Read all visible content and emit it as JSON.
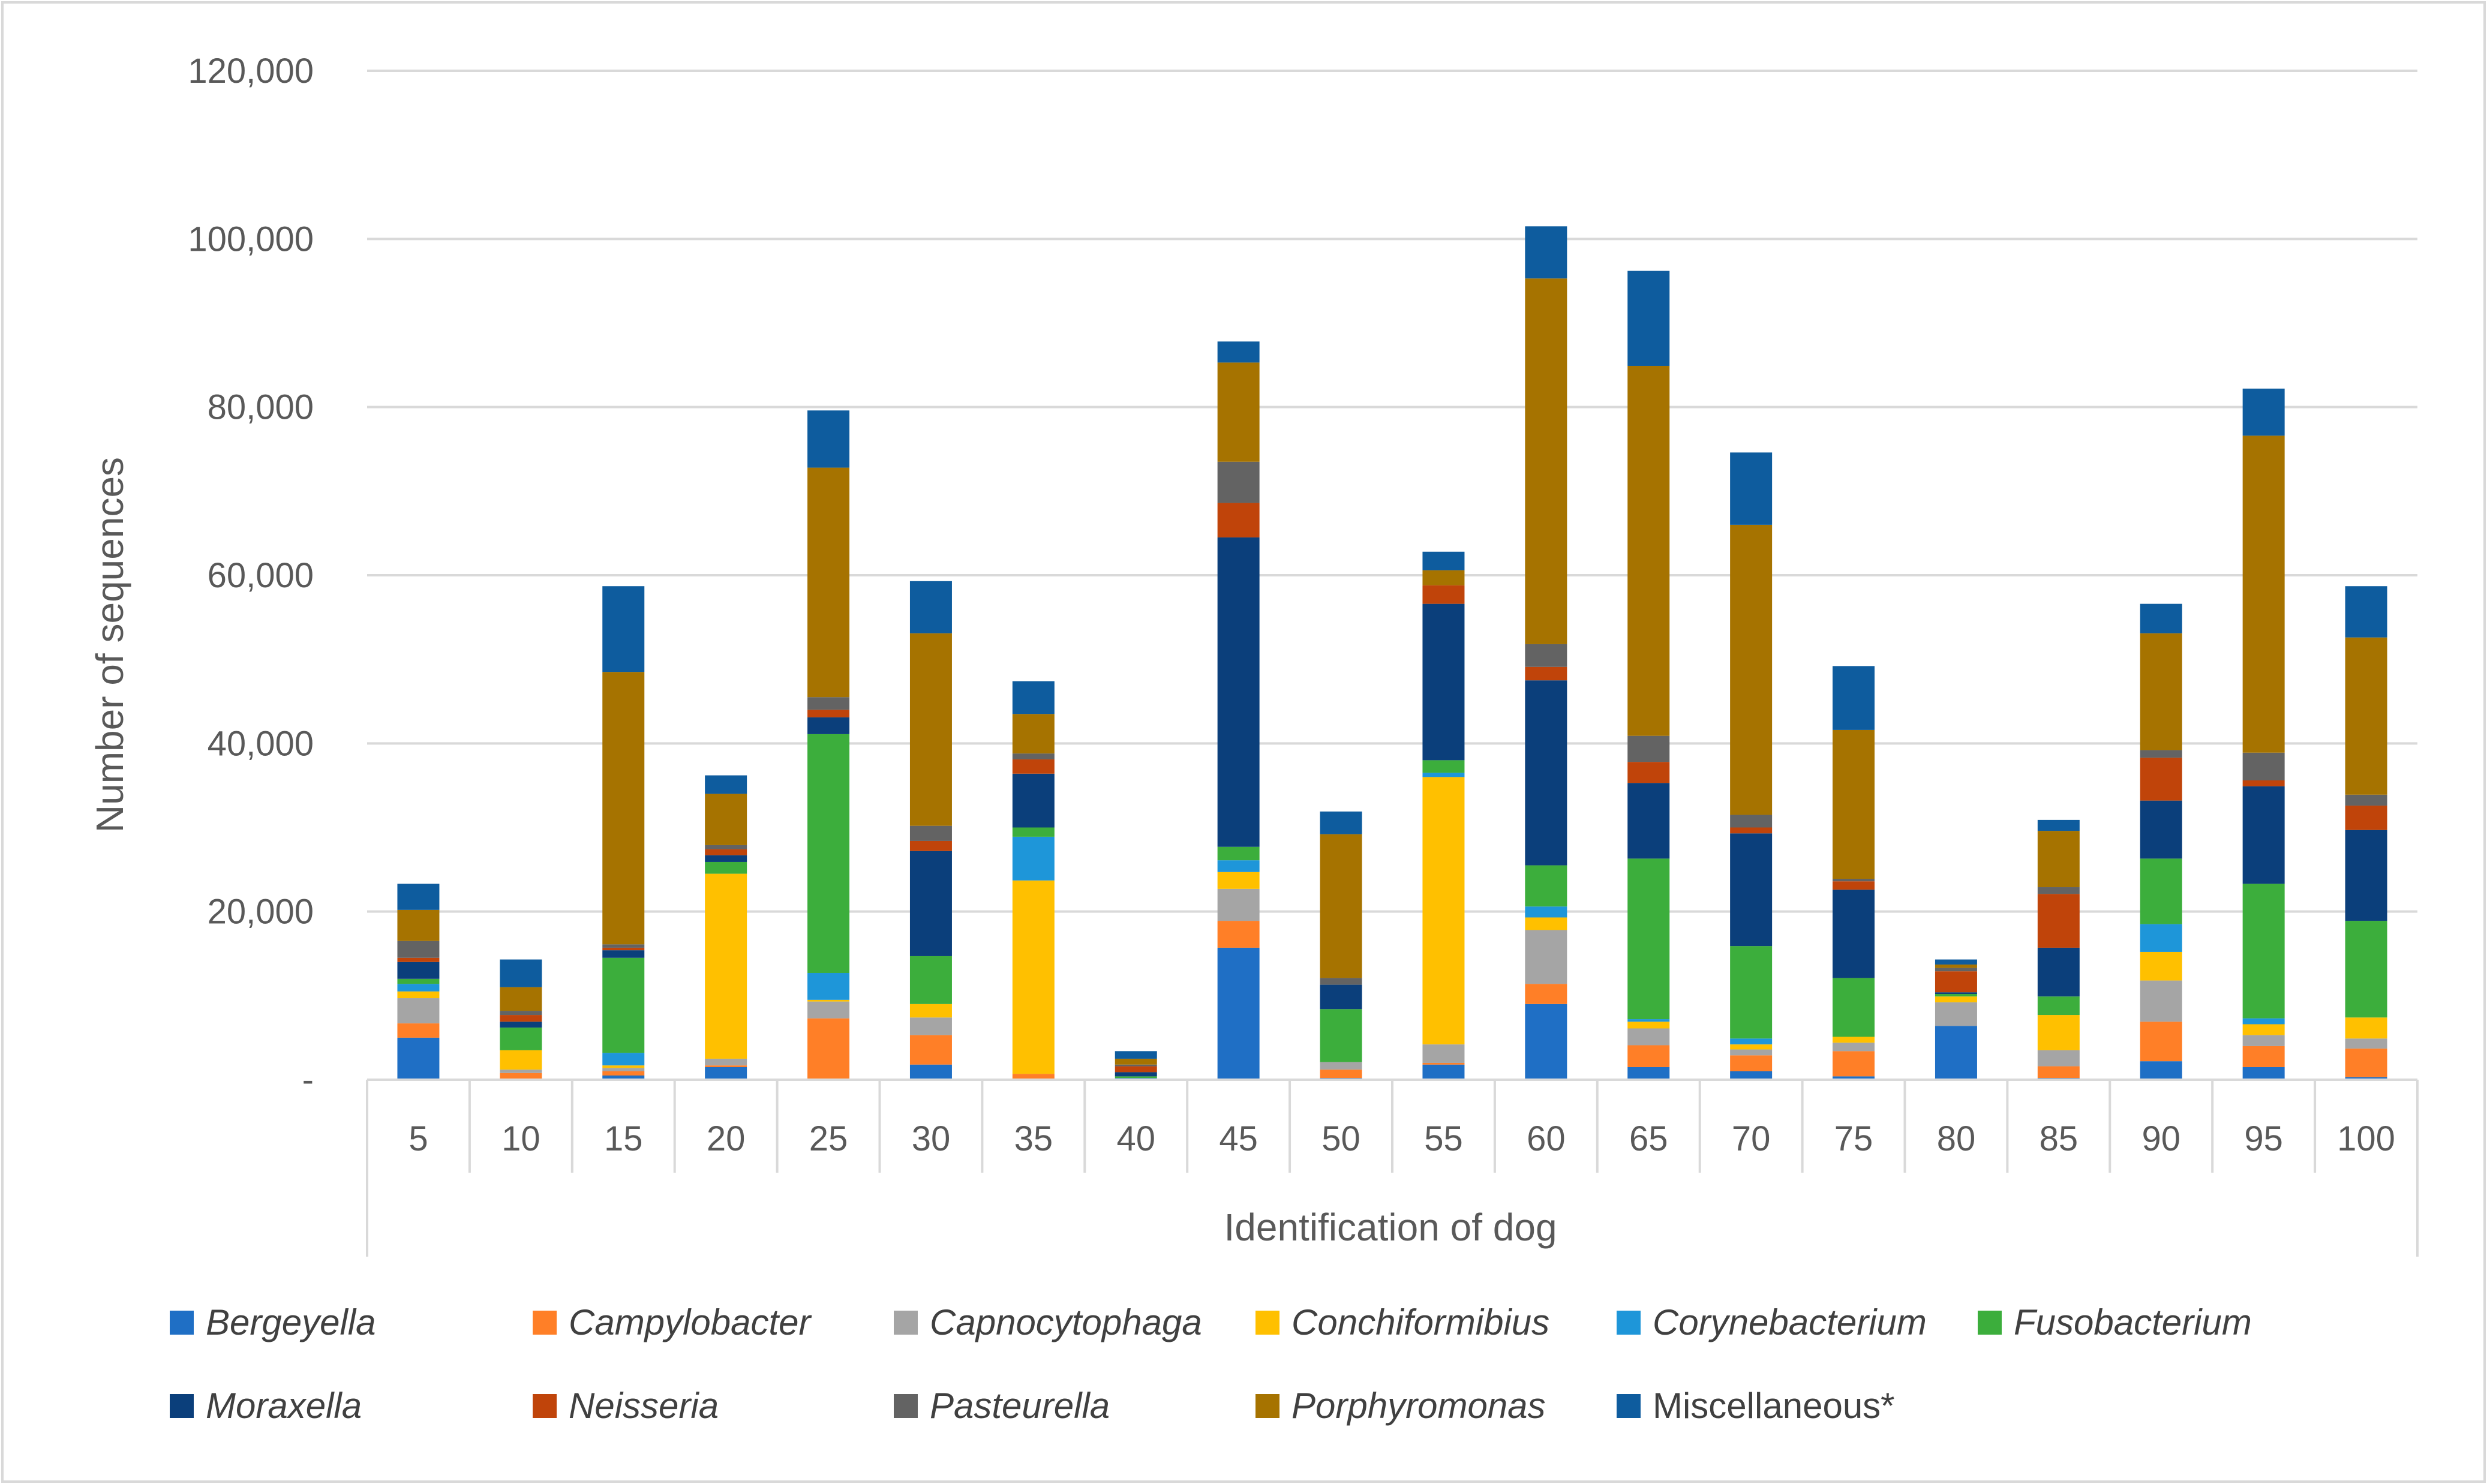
{
  "chart_data": {
    "type": "bar",
    "stacked": true,
    "title": "",
    "xlabel": "Identification of dog",
    "ylabel": "Number of sequences",
    "ylim": [
      0,
      120000
    ],
    "y_ticks": [
      0,
      20000,
      40000,
      60000,
      80000,
      100000,
      120000
    ],
    "y_tick_labels": [
      "-",
      "20,000",
      "40,000",
      "60,000",
      "80,000",
      "100,000",
      "120,000"
    ],
    "grid": true,
    "legend_position": "bottom",
    "categories": [
      "5",
      "10",
      "15",
      "20",
      "25",
      "30",
      "35",
      "40",
      "45",
      "50",
      "55",
      "60",
      "65",
      "70",
      "75",
      "80",
      "85",
      "90",
      "95",
      "100"
    ],
    "series": [
      {
        "name": "Bergeyella",
        "italic": true,
        "color": "#1f6fc5",
        "values": [
          5000,
          100,
          500,
          1500,
          0,
          1800,
          100,
          200,
          15700,
          200,
          1800,
          9000,
          1500,
          1000,
          400,
          6400,
          200,
          2200,
          1500,
          300
        ]
      },
      {
        "name": "Campylobacter",
        "italic": true,
        "color": "#ff7f27",
        "values": [
          1700,
          700,
          500,
          200,
          7300,
          3500,
          600,
          0,
          3200,
          1000,
          200,
          2400,
          2600,
          1900,
          3000,
          0,
          1400,
          4700,
          2500,
          3400
        ]
      },
      {
        "name": "Capnocytophaga",
        "italic": true,
        "color": "#a5a5a5",
        "values": [
          3000,
          400,
          400,
          800,
          2000,
          2100,
          0,
          0,
          3800,
          900,
          2200,
          6400,
          2000,
          700,
          1000,
          2800,
          1900,
          4900,
          1300,
          1200
        ]
      },
      {
        "name": "Conchiformibius",
        "italic": true,
        "color": "#ffc000",
        "values": [
          800,
          2300,
          300,
          22000,
          200,
          1600,
          23000,
          0,
          2000,
          0,
          31800,
          1500,
          800,
          600,
          700,
          700,
          4200,
          3400,
          1300,
          2500
        ]
      },
      {
        "name": "Corynebacterium",
        "italic": true,
        "color": "#1e96d9",
        "values": [
          900,
          0,
          1500,
          0,
          3200,
          0,
          5200,
          0,
          1400,
          0,
          500,
          1300,
          300,
          700,
          0,
          0,
          0,
          3300,
          700,
          0
        ]
      },
      {
        "name": "Fusobacterium",
        "italic": true,
        "color": "#3cae3c",
        "values": [
          600,
          2700,
          11300,
          1400,
          28400,
          5700,
          1100,
          200,
          1600,
          6300,
          1500,
          4900,
          19100,
          11000,
          7000,
          300,
          2200,
          7800,
          16000,
          11500
        ]
      },
      {
        "name": "Moraxella",
        "italic": true,
        "color": "#0b3f7b",
        "values": [
          2000,
          700,
          900,
          800,
          2000,
          12500,
          6400,
          500,
          36800,
          2900,
          18600,
          22000,
          9000,
          13400,
          10500,
          200,
          5800,
          6900,
          11600,
          10800
        ]
      },
      {
        "name": "Neisseria",
        "italic": true,
        "color": "#c0440a",
        "values": [
          500,
          800,
          300,
          700,
          900,
          1200,
          1700,
          700,
          4100,
          0,
          2200,
          1600,
          2500,
          700,
          1000,
          2500,
          6400,
          5100,
          700,
          2900
        ]
      },
      {
        "name": "Pasteurella",
        "italic": true,
        "color": "#636363",
        "values": [
          2000,
          500,
          400,
          500,
          1500,
          1800,
          700,
          200,
          4900,
          800,
          0,
          2700,
          3100,
          1500,
          300,
          400,
          800,
          900,
          3300,
          1300
        ]
      },
      {
        "name": "Porphyromonas",
        "italic": true,
        "color": "#a67300",
        "values": [
          3700,
          2800,
          32400,
          6100,
          27300,
          22900,
          4700,
          700,
          11800,
          17100,
          1800,
          43500,
          44000,
          34500,
          17700,
          400,
          6700,
          13900,
          37700,
          18700
        ]
      },
      {
        "name": "Miscellaneous*",
        "italic": false,
        "color": "#0e5c9e",
        "values": [
          3100,
          3300,
          10200,
          2200,
          6800,
          6200,
          3900,
          900,
          2500,
          2700,
          2200,
          6200,
          11300,
          8600,
          7600,
          600,
          1300,
          3500,
          5600,
          6100
        ]
      }
    ]
  }
}
